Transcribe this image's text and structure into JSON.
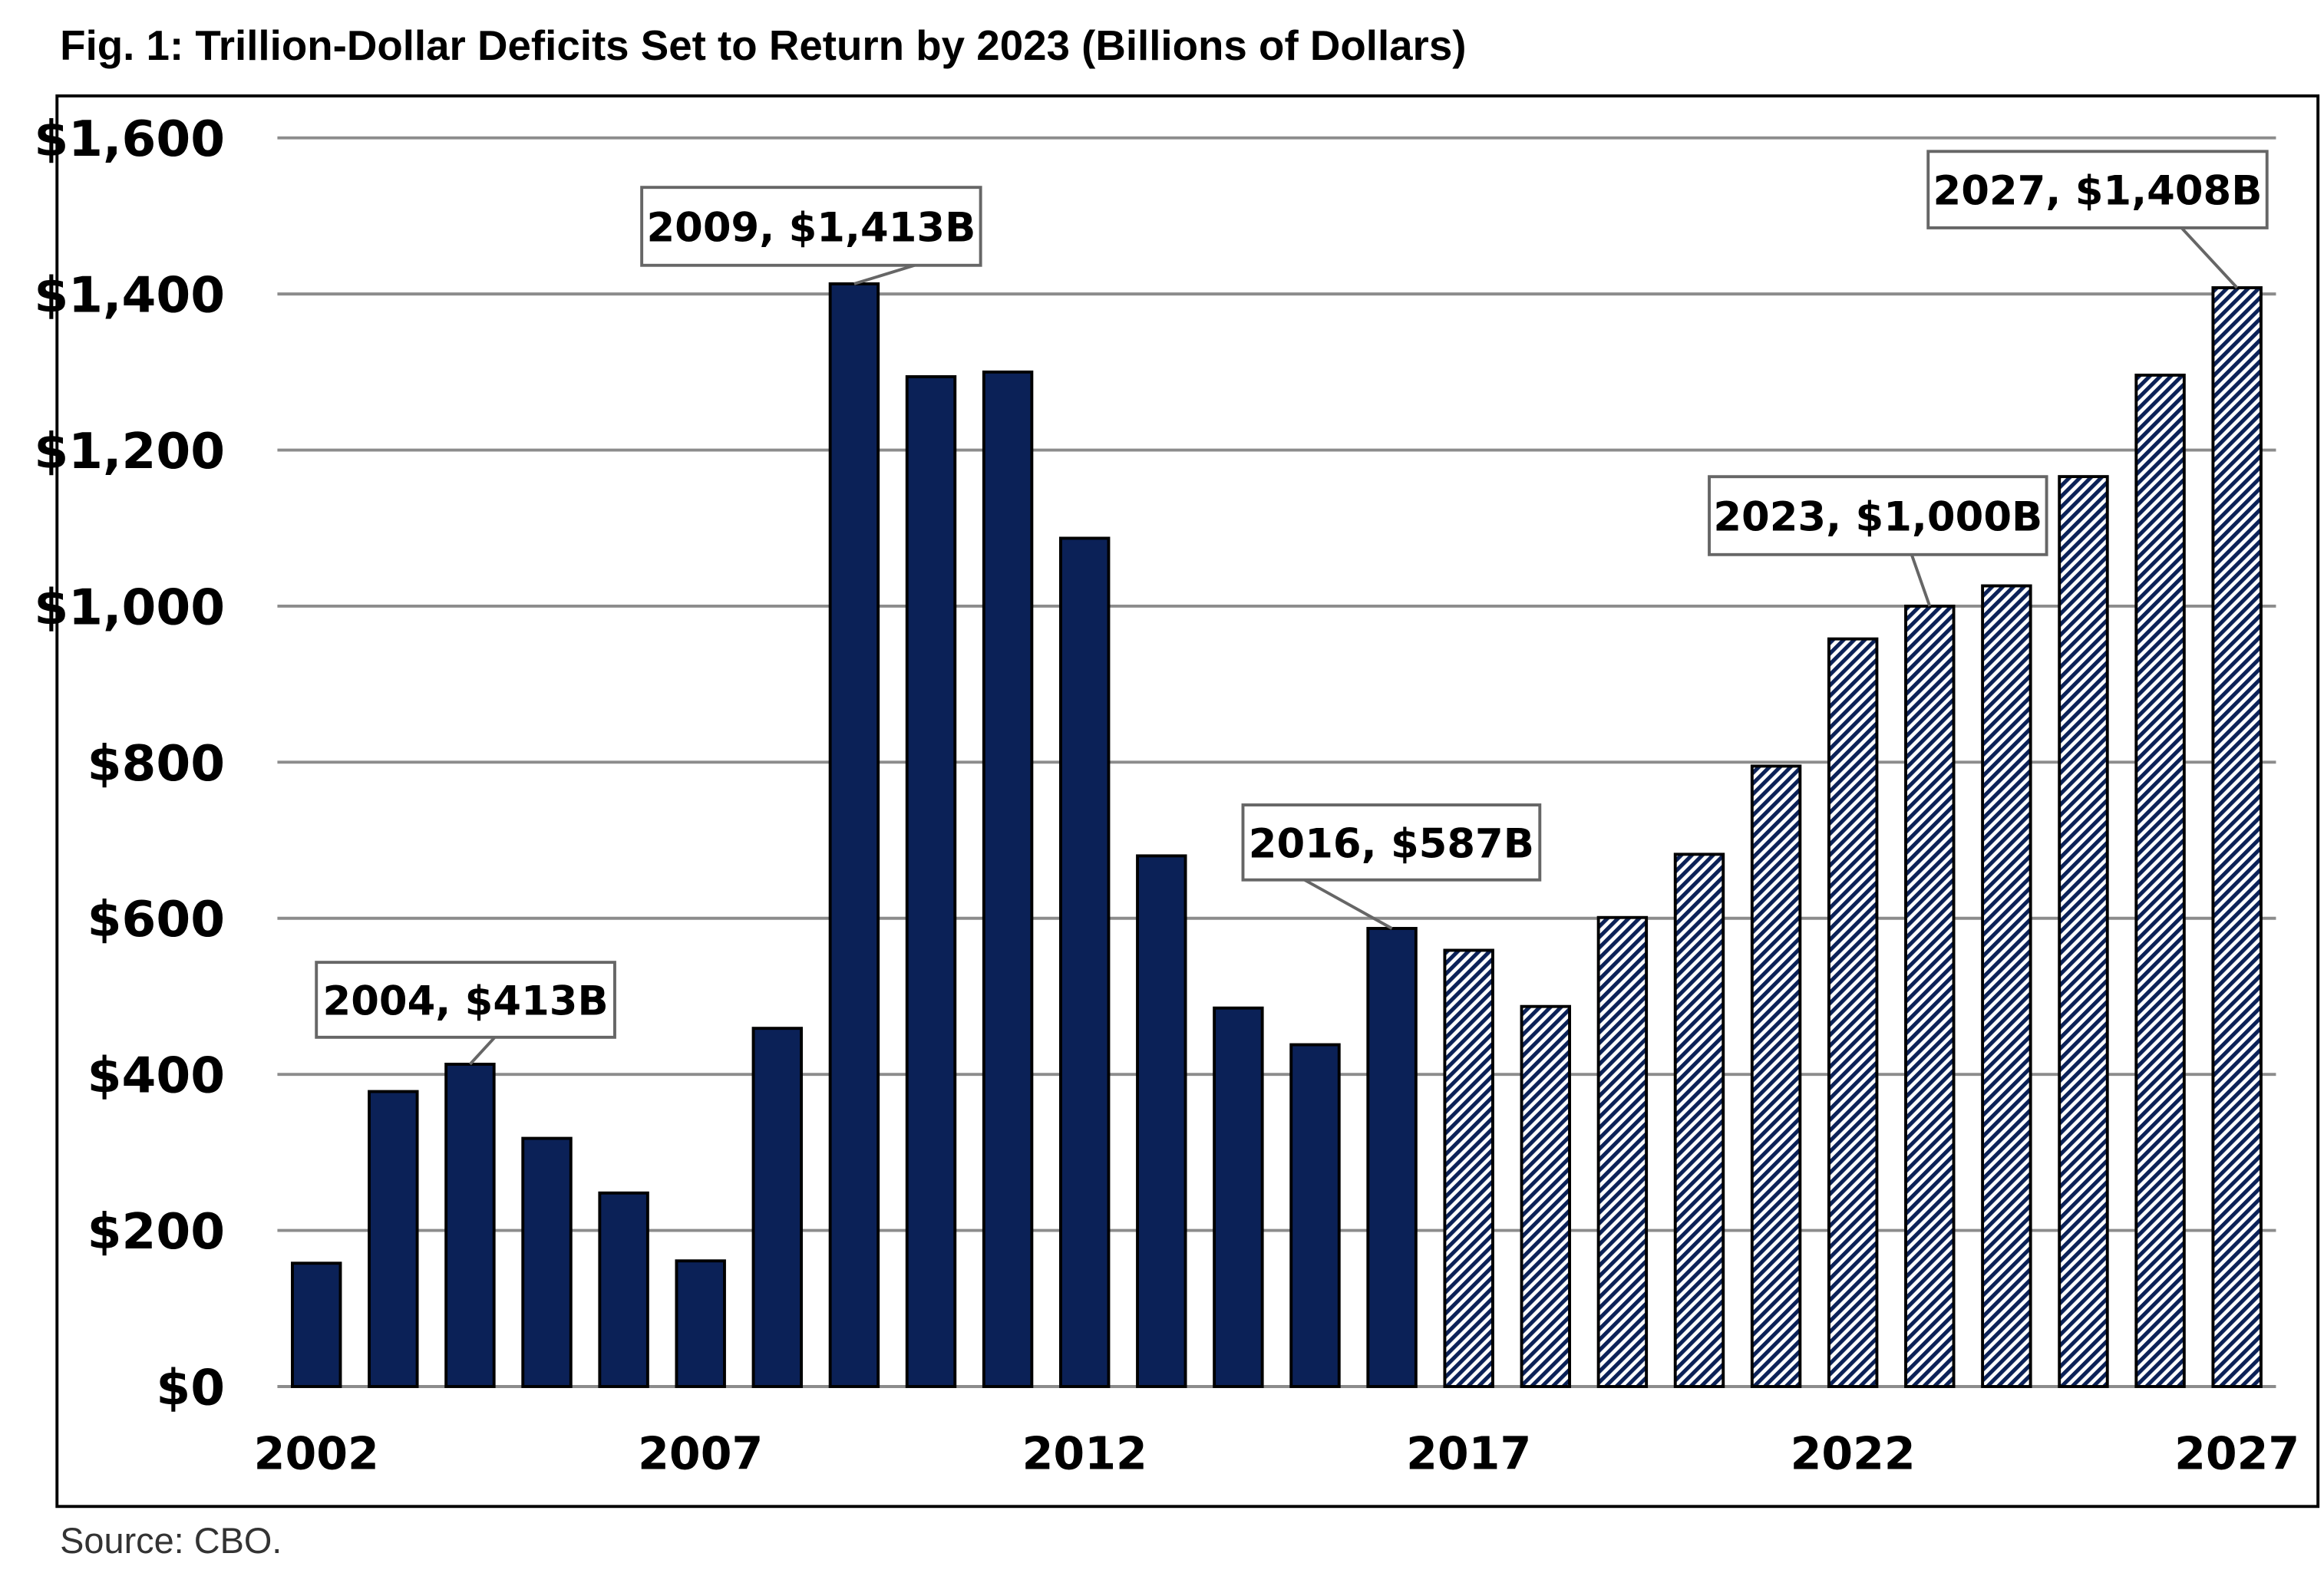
{
  "chart_data": {
    "type": "bar",
    "title": "Fig. 1: Trillion-Dollar Deficits Set to Return by 2023 (Billions of Dollars)",
    "xlabel": "",
    "ylabel": "",
    "source": "Source: CBO.",
    "ylim": [
      0,
      1600
    ],
    "yticks": [
      0,
      200,
      400,
      600,
      800,
      1000,
      1200,
      1400,
      1600
    ],
    "ytick_labels": [
      "$0",
      "$200",
      "$400",
      "$600",
      "$800",
      "$1,000",
      "$1,200",
      "$1,400",
      "$1,600"
    ],
    "xtick_labels": [
      "2002",
      "2007",
      "2012",
      "2017",
      "2022",
      "2027"
    ],
    "grid": "horizontal",
    "categories": [
      2002,
      2003,
      2004,
      2005,
      2006,
      2007,
      2008,
      2009,
      2010,
      2011,
      2012,
      2013,
      2014,
      2015,
      2016,
      2017,
      2018,
      2019,
      2020,
      2021,
      2022,
      2023,
      2024,
      2025,
      2026,
      2027
    ],
    "values": [
      158,
      378,
      413,
      318,
      248,
      161,
      459,
      1413,
      1294,
      1300,
      1087,
      680,
      485,
      438,
      587,
      559,
      487,
      601,
      682,
      795,
      958,
      1000,
      1026,
      1166,
      1296,
      1408
    ],
    "styles": {
      "actual_through": 2016,
      "actual_color": "#0b2157",
      "projected_pattern": "diagonal-hatch",
      "projected_color": "#0b2157"
    },
    "annotations": [
      {
        "year": 2004,
        "text": "2004, $413B"
      },
      {
        "year": 2009,
        "text": "2009, $1,413B"
      },
      {
        "year": 2016,
        "text": "2016, $587B"
      },
      {
        "year": 2023,
        "text": "2023, $1,000B"
      },
      {
        "year": 2027,
        "text": "2027, $1,408B"
      }
    ]
  }
}
